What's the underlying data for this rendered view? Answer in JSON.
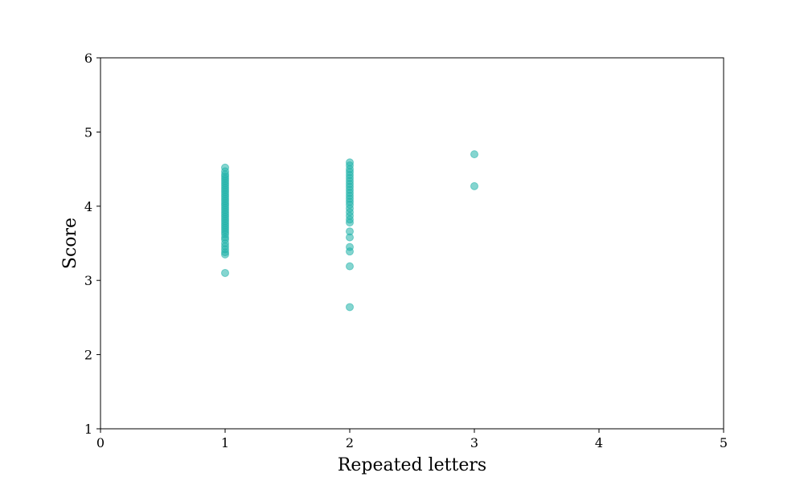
{
  "chart_data": {
    "type": "scatter",
    "title": "",
    "xlabel": "Repeated letters",
    "ylabel": "Score",
    "xlim": [
      0,
      5
    ],
    "ylim": [
      1,
      6
    ],
    "xticks": [
      "0",
      "1",
      "2",
      "3",
      "4",
      "5"
    ],
    "yticks": [
      "1",
      "2",
      "3",
      "4",
      "5",
      "6"
    ],
    "grid": false,
    "point_color": "#20b2aa",
    "point_opacity": 0.55,
    "series": [
      {
        "points": [
          [
            1,
            3.1
          ],
          [
            1,
            3.35
          ],
          [
            1,
            3.38
          ],
          [
            1,
            3.42
          ],
          [
            1,
            3.46
          ],
          [
            1,
            3.5
          ],
          [
            1,
            3.55
          ],
          [
            1,
            3.58
          ],
          [
            1,
            3.62
          ],
          [
            1,
            3.65
          ],
          [
            1,
            3.68
          ],
          [
            1,
            3.71
          ],
          [
            1,
            3.74
          ],
          [
            1,
            3.77
          ],
          [
            1,
            3.8
          ],
          [
            1,
            3.83
          ],
          [
            1,
            3.86
          ],
          [
            1,
            3.89
          ],
          [
            1,
            3.92
          ],
          [
            1,
            3.95
          ],
          [
            1,
            3.98
          ],
          [
            1,
            4.01
          ],
          [
            1,
            4.04
          ],
          [
            1,
            4.07
          ],
          [
            1,
            4.1
          ],
          [
            1,
            4.13
          ],
          [
            1,
            4.16
          ],
          [
            1,
            4.19
          ],
          [
            1,
            4.22
          ],
          [
            1,
            4.25
          ],
          [
            1,
            4.28
          ],
          [
            1,
            4.31
          ],
          [
            1,
            4.34
          ],
          [
            1,
            4.37
          ],
          [
            1,
            4.4
          ],
          [
            1,
            4.43
          ],
          [
            1,
            4.47
          ],
          [
            1,
            4.52
          ],
          [
            2,
            2.64
          ],
          [
            2,
            3.19
          ],
          [
            2,
            3.39
          ],
          [
            2,
            3.45
          ],
          [
            2,
            3.58
          ],
          [
            2,
            3.66
          ],
          [
            2,
            3.78
          ],
          [
            2,
            3.82
          ],
          [
            2,
            3.87
          ],
          [
            2,
            3.92
          ],
          [
            2,
            3.97
          ],
          [
            2,
            4.02
          ],
          [
            2,
            4.06
          ],
          [
            2,
            4.1
          ],
          [
            2,
            4.14
          ],
          [
            2,
            4.18
          ],
          [
            2,
            4.22
          ],
          [
            2,
            4.26
          ],
          [
            2,
            4.3
          ],
          [
            2,
            4.34
          ],
          [
            2,
            4.38
          ],
          [
            2,
            4.42
          ],
          [
            2,
            4.46
          ],
          [
            2,
            4.5
          ],
          [
            2,
            4.55
          ],
          [
            2,
            4.59
          ],
          [
            3,
            4.27
          ],
          [
            3,
            4.7
          ]
        ]
      }
    ]
  }
}
